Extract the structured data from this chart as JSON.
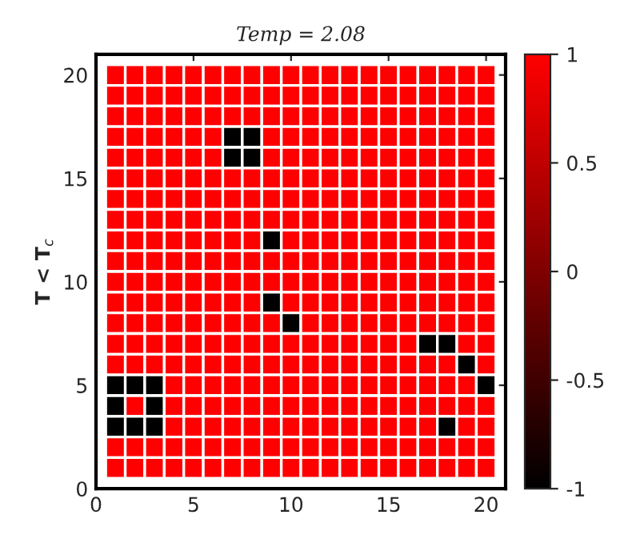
{
  "chart_data": {
    "type": "heatmap",
    "title": "Temp = 2.08",
    "ylabel": "T < T$_{c}$",
    "x": [
      1,
      2,
      3,
      4,
      5,
      6,
      7,
      8,
      9,
      10,
      11,
      12,
      13,
      14,
      15,
      16,
      17,
      18,
      19,
      20
    ],
    "y": [
      20,
      19,
      18,
      17,
      16,
      15,
      14,
      13,
      12,
      11,
      10,
      9,
      8,
      7,
      6,
      5,
      4,
      3,
      2,
      1
    ],
    "cells": [
      [
        1,
        1,
        1,
        1,
        1,
        1,
        1,
        1,
        1,
        1,
        1,
        1,
        1,
        1,
        1,
        1,
        1,
        1,
        1,
        1
      ],
      [
        1,
        1,
        1,
        1,
        1,
        1,
        1,
        1,
        1,
        1,
        1,
        1,
        1,
        1,
        1,
        1,
        1,
        1,
        1,
        1
      ],
      [
        1,
        1,
        1,
        1,
        1,
        1,
        1,
        1,
        1,
        1,
        1,
        1,
        1,
        1,
        1,
        1,
        1,
        1,
        1,
        1
      ],
      [
        1,
        1,
        1,
        1,
        1,
        1,
        -1,
        -1,
        1,
        1,
        1,
        1,
        1,
        1,
        1,
        1,
        1,
        1,
        1,
        1
      ],
      [
        1,
        1,
        1,
        1,
        1,
        1,
        -1,
        -1,
        1,
        1,
        1,
        1,
        1,
        1,
        1,
        1,
        1,
        1,
        1,
        1
      ],
      [
        1,
        1,
        1,
        1,
        1,
        1,
        1,
        1,
        1,
        1,
        1,
        1,
        1,
        1,
        1,
        1,
        1,
        1,
        1,
        1
      ],
      [
        1,
        1,
        1,
        1,
        1,
        1,
        1,
        1,
        1,
        1,
        1,
        1,
        1,
        1,
        1,
        1,
        1,
        1,
        1,
        1
      ],
      [
        1,
        1,
        1,
        1,
        1,
        1,
        1,
        1,
        1,
        1,
        1,
        1,
        1,
        1,
        1,
        1,
        1,
        1,
        1,
        1
      ],
      [
        1,
        1,
        1,
        1,
        1,
        1,
        1,
        1,
        -1,
        1,
        1,
        1,
        1,
        1,
        1,
        1,
        1,
        1,
        1,
        1
      ],
      [
        1,
        1,
        1,
        1,
        1,
        1,
        1,
        1,
        1,
        1,
        1,
        1,
        1,
        1,
        1,
        1,
        1,
        1,
        1,
        1
      ],
      [
        1,
        1,
        1,
        1,
        1,
        1,
        1,
        1,
        1,
        1,
        1,
        1,
        1,
        1,
        1,
        1,
        1,
        1,
        1,
        1
      ],
      [
        1,
        1,
        1,
        1,
        1,
        1,
        1,
        1,
        -1,
        1,
        1,
        1,
        1,
        1,
        1,
        1,
        1,
        1,
        1,
        1
      ],
      [
        1,
        1,
        1,
        1,
        1,
        1,
        1,
        1,
        1,
        -1,
        1,
        1,
        1,
        1,
        1,
        1,
        1,
        1,
        1,
        1
      ],
      [
        1,
        1,
        1,
        1,
        1,
        1,
        1,
        1,
        1,
        1,
        1,
        1,
        1,
        1,
        1,
        1,
        -1,
        -1,
        1,
        1
      ],
      [
        1,
        1,
        1,
        1,
        1,
        1,
        1,
        1,
        1,
        1,
        1,
        1,
        1,
        1,
        1,
        1,
        1,
        1,
        -1,
        1
      ],
      [
        -1,
        -1,
        -1,
        1,
        1,
        1,
        1,
        1,
        1,
        1,
        1,
        1,
        1,
        1,
        1,
        1,
        1,
        1,
        1,
        -1
      ],
      [
        -1,
        1,
        -1,
        1,
        1,
        1,
        1,
        1,
        1,
        1,
        1,
        1,
        1,
        1,
        1,
        1,
        1,
        1,
        1,
        1
      ],
      [
        -1,
        -1,
        -1,
        1,
        1,
        1,
        1,
        1,
        1,
        1,
        1,
        1,
        1,
        1,
        1,
        1,
        1,
        -1,
        1,
        1
      ],
      [
        1,
        1,
        1,
        1,
        1,
        1,
        1,
        1,
        1,
        1,
        1,
        1,
        1,
        1,
        1,
        1,
        1,
        1,
        1,
        1
      ],
      [
        1,
        1,
        1,
        1,
        1,
        1,
        1,
        1,
        1,
        1,
        1,
        1,
        1,
        1,
        1,
        1,
        1,
        1,
        1,
        1
      ]
    ],
    "colors": [
      "#000000",
      "#ff0000"
    ],
    "clim": [
      -1,
      1
    ],
    "cticks": [
      -1,
      -0.5,
      0,
      0.5,
      1
    ],
    "xlim": [
      0,
      21
    ],
    "ylim": [
      0,
      21
    ],
    "xticks": [
      0,
      5,
      10,
      15,
      20
    ],
    "yticks": [
      0,
      5,
      10,
      15,
      20
    ],
    "grid": false
  }
}
